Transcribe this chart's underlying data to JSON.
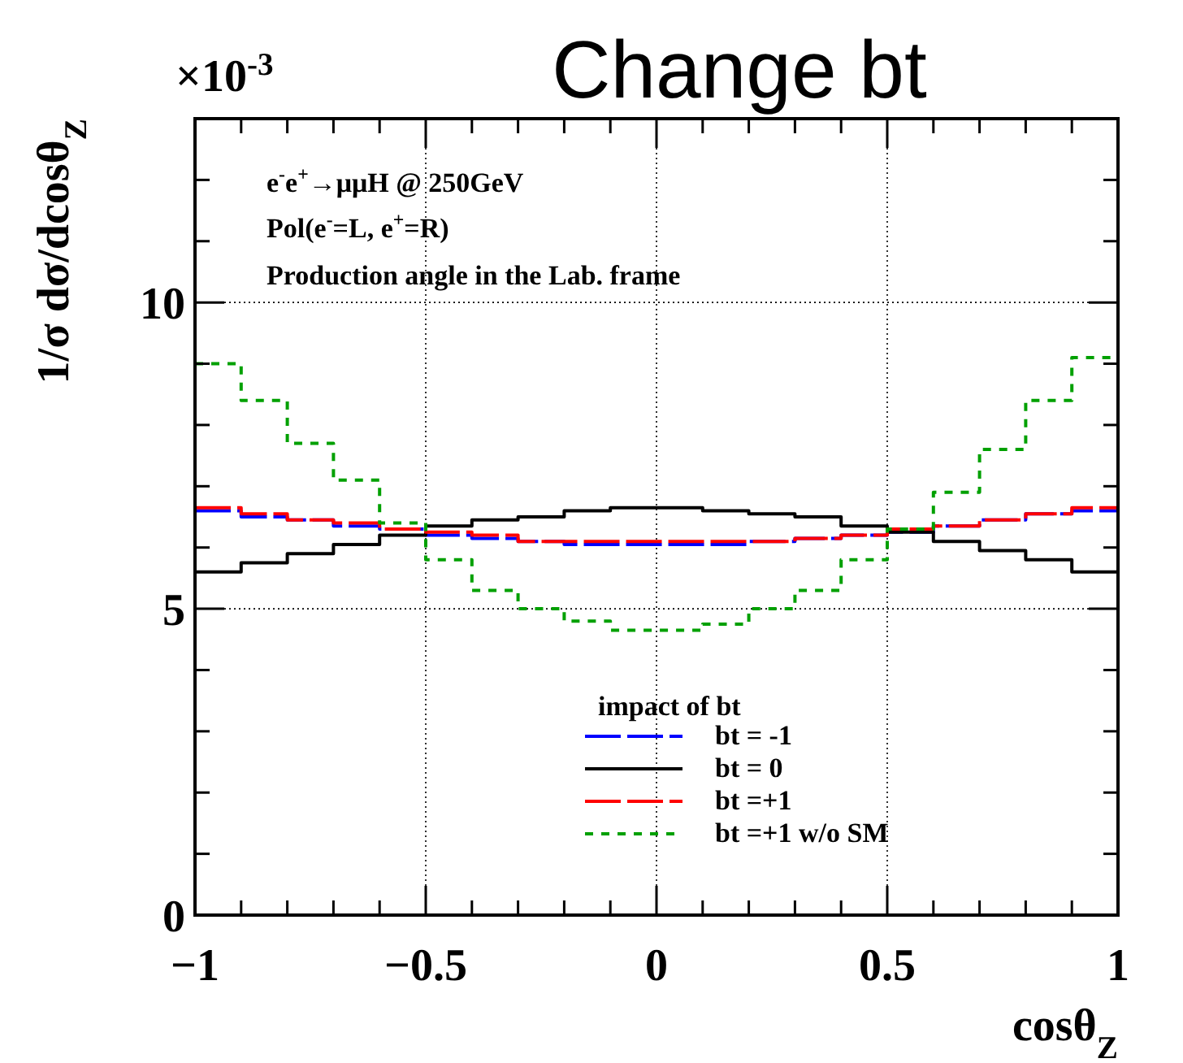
{
  "chart_data": {
    "type": "histogram",
    "title": "Change bt",
    "xlabel": "cosθ$_{Z}$",
    "ylabel": "1/σ dσ/dcosθ$_{Z}$",
    "legend_title": "impact of bt",
    "annotations": [
      "×10$^{-3}$",
      "e$^{-}$e$^{+}$→μμH @ 250GeV",
      "Pol(e$^{-}$=L, e$^{+}$=R)",
      "Production angle in the Lab. frame"
    ],
    "bins": [
      -1,
      -0.9,
      -0.8,
      -0.7,
      -0.6,
      -0.5,
      -0.4,
      -0.3,
      -0.2,
      -0.1,
      0,
      0.1,
      0.2,
      0.3,
      0.4,
      0.5,
      0.6,
      0.7,
      0.8,
      0.9,
      1
    ],
    "series": [
      {
        "name": "bt = -1",
        "color": "#0000ff",
        "line_style": "dashed",
        "values": [
          6.6,
          6.5,
          6.45,
          6.35,
          6.3,
          6.2,
          6.15,
          6.1,
          6.05,
          6.05,
          6.05,
          6.05,
          6.1,
          6.15,
          6.2,
          6.25,
          6.35,
          6.45,
          6.55,
          6.6
        ]
      },
      {
        "name": "bt = 0",
        "color": "#000000",
        "line_style": "solid",
        "values": [
          5.6,
          5.75,
          5.9,
          6.05,
          6.2,
          6.35,
          6.45,
          6.5,
          6.6,
          6.65,
          6.65,
          6.6,
          6.55,
          6.5,
          6.35,
          6.25,
          6.1,
          5.95,
          5.8,
          5.6
        ]
      },
      {
        "name": "bt =+1",
        "color": "#ff0000",
        "line_style": "dashed",
        "values": [
          6.65,
          6.55,
          6.45,
          6.4,
          6.3,
          6.25,
          6.2,
          6.1,
          6.1,
          6.1,
          6.1,
          6.1,
          6.1,
          6.15,
          6.2,
          6.3,
          6.35,
          6.45,
          6.55,
          6.65
        ]
      },
      {
        "name": "bt =+1 w/o SM",
        "color": "#00a000",
        "line_style": "dotted",
        "values": [
          9.0,
          8.4,
          7.7,
          7.1,
          6.4,
          5.8,
          5.3,
          5.0,
          4.8,
          4.65,
          4.65,
          4.75,
          5.0,
          5.3,
          5.8,
          6.3,
          6.9,
          7.6,
          8.4,
          9.1
        ]
      }
    ],
    "xlim": [
      -1,
      1
    ],
    "ylim": [
      0,
      13
    ],
    "xticks": [
      {
        "value": -1,
        "label": "−1"
      },
      {
        "value": -0.9,
        "label": null
      },
      {
        "value": -0.8,
        "label": null
      },
      {
        "value": -0.7,
        "label": null
      },
      {
        "value": -0.6,
        "label": null
      },
      {
        "value": -0.5,
        "label": "−0.5"
      },
      {
        "value": -0.4,
        "label": null
      },
      {
        "value": -0.3,
        "label": null
      },
      {
        "value": -0.2,
        "label": null
      },
      {
        "value": -0.1,
        "label": null
      },
      0,
      {
        "value": 0.1,
        "label": null
      },
      {
        "value": 0.2,
        "label": null
      },
      {
        "value": 0.3,
        "label": null
      },
      {
        "value": 0.4,
        "label": null
      },
      0.5,
      {
        "value": 0.6,
        "label": null
      },
      {
        "value": 0.7,
        "label": null
      },
      {
        "value": 0.8,
        "label": null
      },
      {
        "value": 0.9,
        "label": null
      },
      1
    ],
    "yticks": [
      0,
      {
        "value": 1,
        "label": null
      },
      {
        "value": 2,
        "label": null
      },
      {
        "value": 3,
        "label": null
      },
      {
        "value": 4,
        "label": null
      },
      5,
      {
        "value": 6,
        "label": null
      },
      {
        "value": 7,
        "label": null
      },
      {
        "value": 8,
        "label": null
      },
      {
        "value": 9,
        "label": null
      },
      10,
      {
        "value": 11,
        "label": null
      },
      {
        "value": 12,
        "label": null
      },
      {
        "value": 13,
        "label": null
      }
    ],
    "grid": true,
    "legend": "bottom"
  }
}
